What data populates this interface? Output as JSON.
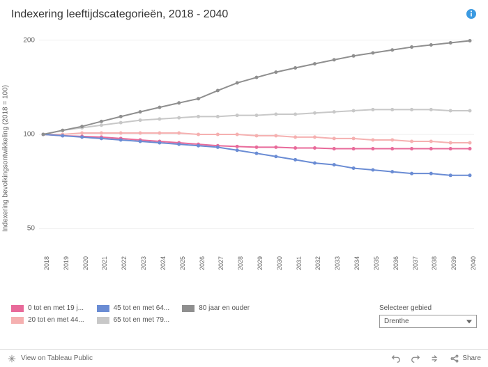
{
  "title": "Indexering leeftijdscategorieën, 2018 - 2040",
  "y_label": "Indexering bevolkingsontwikkeling (2018 = 100)",
  "years": [
    2018,
    2019,
    2020,
    2021,
    2022,
    2023,
    2024,
    2025,
    2026,
    2027,
    2028,
    2029,
    2030,
    2031,
    2032,
    2033,
    2034,
    2035,
    2036,
    2037,
    2038,
    2039,
    2040
  ],
  "y_ticks": [
    50,
    100,
    200
  ],
  "y_min": 40,
  "y_max": 210,
  "series": [
    {
      "label": "0 tot en met 19 j...",
      "color": "#e86a9a",
      "values": [
        100,
        99,
        98.5,
        98,
        97,
        96,
        95,
        94,
        93,
        92,
        91.5,
        91,
        91,
        90.5,
        90.5,
        90,
        90,
        90,
        90,
        90,
        90,
        90,
        90
      ]
    },
    {
      "label": "20 tot en met 44...",
      "color": "#f5b0b0",
      "values": [
        100,
        100,
        101,
        101,
        101,
        101,
        101,
        101,
        100,
        100,
        100,
        99,
        99,
        98,
        98,
        97,
        97,
        96,
        96,
        95,
        95,
        94,
        94
      ]
    },
    {
      "label": "45 tot en met 64...",
      "color": "#6a8cd4",
      "values": [
        100,
        99,
        98,
        97,
        96,
        95,
        94,
        93,
        92,
        91,
        89,
        87,
        85,
        83,
        81,
        80,
        78,
        77,
        76,
        75,
        75,
        74,
        74
      ]
    },
    {
      "label": "65 tot en met 79...",
      "color": "#c8c8c8",
      "values": [
        100,
        103,
        105,
        107,
        109,
        111,
        112,
        113,
        114,
        114,
        115,
        115,
        116,
        116,
        117,
        118,
        119,
        120,
        120,
        120,
        120,
        119,
        119
      ]
    },
    {
      "label": "80 jaar en ouder",
      "color": "#8f8f8f",
      "values": [
        100,
        103,
        106,
        110,
        114,
        118,
        122,
        126,
        130,
        138,
        146,
        152,
        158,
        163,
        168,
        173,
        178,
        182,
        186,
        190,
        193,
        196,
        199
      ]
    }
  ],
  "point_radius": 2.5,
  "line_width": 2,
  "background_color": "#ffffff",
  "grid_color": "#eeeeee",
  "selector": {
    "label": "Selecteer gebied",
    "value": "Drenthe"
  },
  "footer": {
    "view_label": "View on Tableau Public",
    "share_label": "Share"
  }
}
